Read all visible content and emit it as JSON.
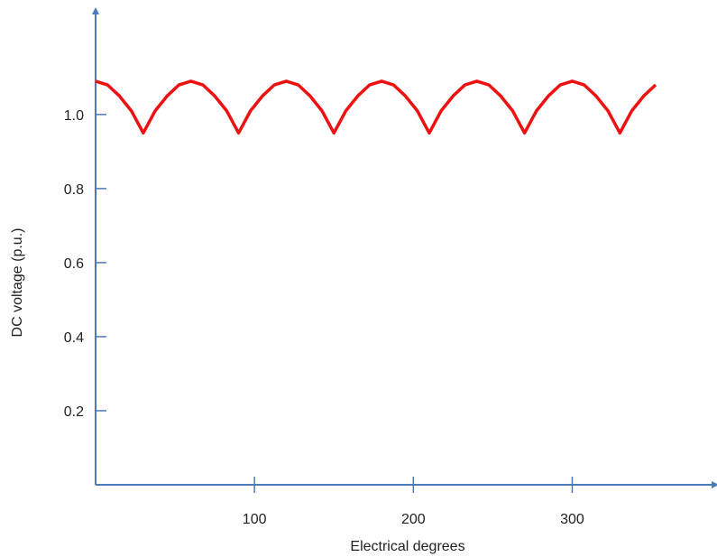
{
  "chart_data": {
    "type": "line",
    "title": "",
    "xlabel": "Electrical degrees",
    "ylabel": "DC voltage (p.u.)",
    "xlim": [
      0,
      390
    ],
    "ylim": [
      0,
      1.28
    ],
    "x_ticks": [
      100,
      200,
      300
    ],
    "y_ticks": [
      0.2,
      0.4,
      0.6,
      0.8,
      1.0
    ],
    "x_tick_labels": [
      "100",
      "200",
      "300"
    ],
    "y_tick_labels": [
      "0.2",
      "0.4",
      "0.6",
      "0.8",
      "1.0"
    ],
    "grid": false,
    "legend": "none",
    "series": [
      {
        "description": "six-pulse rectified DC voltage ripple",
        "color": "#ee1111",
        "x": [
          0,
          7.5,
          15,
          22.5,
          30,
          37.5,
          45,
          52.5,
          60,
          67.5,
          75,
          82.5,
          90,
          97.5,
          105,
          112.5,
          120,
          127.5,
          135,
          142.5,
          150,
          157.5,
          165,
          172.5,
          180,
          187.5,
          195,
          202.5,
          210,
          217.5,
          225,
          232.5,
          240,
          247.5,
          255,
          262.5,
          270,
          277.5,
          285,
          292.5,
          300,
          307.5,
          315,
          322.5,
          330,
          337.5,
          345,
          352.5
        ],
        "values": [
          1.09,
          1.08,
          1.05,
          1.01,
          0.95,
          1.01,
          1.05,
          1.08,
          1.09,
          1.08,
          1.05,
          1.01,
          0.95,
          1.01,
          1.05,
          1.08,
          1.09,
          1.08,
          1.05,
          1.01,
          0.95,
          1.01,
          1.05,
          1.08,
          1.09,
          1.08,
          1.05,
          1.01,
          0.95,
          1.01,
          1.05,
          1.08,
          1.09,
          1.08,
          1.05,
          1.01,
          0.95,
          1.01,
          1.05,
          1.08,
          1.09,
          1.08,
          1.05,
          1.01,
          0.95,
          1.01,
          1.05,
          1.08
        ]
      }
    ]
  },
  "colors": {
    "axis": "#4a7ab8",
    "series": "#ee1111"
  }
}
